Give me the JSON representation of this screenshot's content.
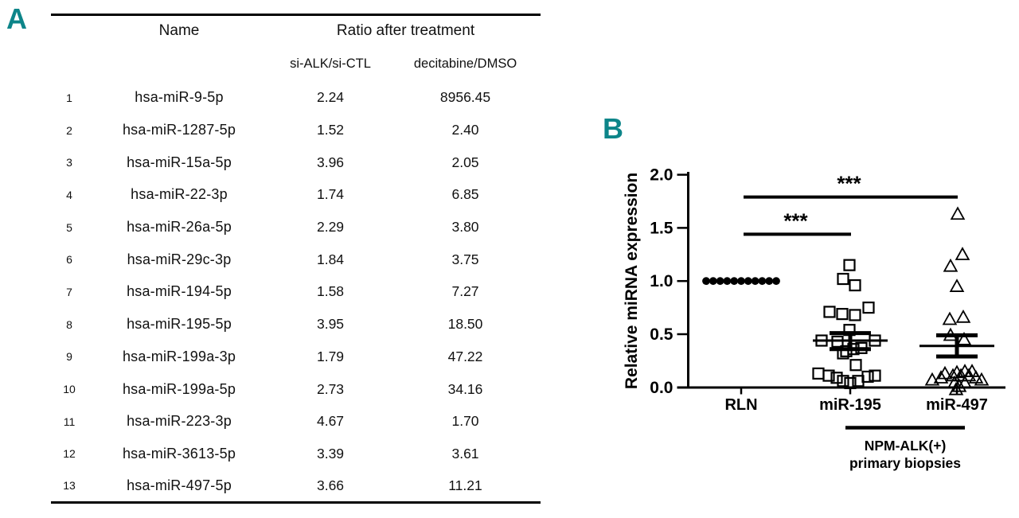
{
  "colors": {
    "panel_label_teal": "#0d8589",
    "ink": "#000000"
  },
  "panelA": {
    "label": "A",
    "table": {
      "name_header": "Name",
      "ratio_header": "Ratio after treatment",
      "subheaders": {
        "si_alk": "si-ALK/si-CTL",
        "decitabine": "decitabine/DMSO"
      },
      "rows": [
        {
          "num": "1",
          "name": "hsa-miR-9-5p",
          "si_alk": "2.24",
          "decitabine": "8956.45"
        },
        {
          "num": "2",
          "name": "hsa-miR-1287-5p",
          "si_alk": "1.52",
          "decitabine": "2.40"
        },
        {
          "num": "3",
          "name": "hsa-miR-15a-5p",
          "si_alk": "3.96",
          "decitabine": "2.05"
        },
        {
          "num": "4",
          "name": "hsa-miR-22-3p",
          "si_alk": "1.74",
          "decitabine": "6.85"
        },
        {
          "num": "5",
          "name": "hsa-miR-26a-5p",
          "si_alk": "2.29",
          "decitabine": "3.80"
        },
        {
          "num": "6",
          "name": "hsa-miR-29c-3p",
          "si_alk": "1.84",
          "decitabine": "3.75"
        },
        {
          "num": "7",
          "name": "hsa-miR-194-5p",
          "si_alk": "1.58",
          "decitabine": "7.27"
        },
        {
          "num": "8",
          "name": "hsa-miR-195-5p",
          "si_alk": "3.95",
          "decitabine": "18.50"
        },
        {
          "num": "9",
          "name": "hsa-miR-199a-3p",
          "si_alk": "1.79",
          "decitabine": "47.22"
        },
        {
          "num": "10",
          "name": "hsa-miR-199a-5p",
          "si_alk": "2.73",
          "decitabine": "34.16"
        },
        {
          "num": "11",
          "name": "hsa-miR-223-3p",
          "si_alk": "4.67",
          "decitabine": "1.70"
        },
        {
          "num": "12",
          "name": "hsa-miR-3613-5p",
          "si_alk": "3.39",
          "decitabine": "3.61"
        },
        {
          "num": "13",
          "name": "hsa-miR-497-5p",
          "si_alk": "3.66",
          "decitabine": "11.21"
        }
      ]
    }
  },
  "panelB": {
    "label": "B"
  },
  "chart_data": {
    "type": "scatter",
    "title": "",
    "xlabel": "",
    "ylabel": "Relative miRNA expression",
    "ylim": [
      0.0,
      2.0
    ],
    "yticks": [
      {
        "value": 0.0,
        "label": "0.0"
      },
      {
        "value": 0.5,
        "label": "0.5"
      },
      {
        "value": 1.0,
        "label": "1.0"
      },
      {
        "value": 1.5,
        "label": "1.5"
      },
      {
        "value": 2.0,
        "label": "2.0"
      }
    ],
    "grid": false,
    "legend": "none",
    "categories": [
      "RLN",
      "miR-195",
      "miR-497"
    ],
    "series": [
      {
        "name": "RLN",
        "marker": "circle",
        "filled": true,
        "points": [
          [
            -44,
            1.0
          ],
          [
            -35.2,
            1.0
          ],
          [
            -26.4,
            1.0
          ],
          [
            -17.6,
            1.0
          ],
          [
            -8.8,
            1.0
          ],
          [
            0,
            1.0
          ],
          [
            8.8,
            1.0
          ],
          [
            17.6,
            1.0
          ],
          [
            26.4,
            1.0
          ],
          [
            35.2,
            1.0
          ],
          [
            44,
            1.0
          ]
        ]
      },
      {
        "name": "miR-195",
        "marker": "square",
        "filled": false,
        "mean": 0.44,
        "sem_low": 0.36,
        "sem_high": 0.51,
        "points": [
          [
            -1,
            1.15
          ],
          [
            -9,
            1.02
          ],
          [
            6,
            0.96
          ],
          [
            -26,
            0.71
          ],
          [
            -10,
            0.69
          ],
          [
            6,
            0.68
          ],
          [
            23,
            0.75
          ],
          [
            -1,
            0.54
          ],
          [
            -36,
            0.44
          ],
          [
            -16,
            0.43
          ],
          [
            31,
            0.44
          ],
          [
            14,
            0.37
          ],
          [
            -5,
            0.34
          ],
          [
            -9,
            0.32
          ],
          [
            4,
            0.36
          ],
          [
            7,
            0.21
          ],
          [
            -40,
            0.13
          ],
          [
            -27,
            0.11
          ],
          [
            -17,
            0.09
          ],
          [
            -9,
            0.06
          ],
          [
            0,
            0.04
          ],
          [
            10,
            0.06
          ],
          [
            22,
            0.1
          ],
          [
            31,
            0.11
          ]
        ]
      },
      {
        "name": "miR-497",
        "marker": "triangle",
        "filled": false,
        "mean": 0.39,
        "sem_low": 0.29,
        "sem_high": 0.49,
        "points": [
          [
            1,
            1.63
          ],
          [
            7,
            1.25
          ],
          [
            -8,
            1.14
          ],
          [
            0,
            0.95
          ],
          [
            -9,
            0.64
          ],
          [
            8,
            0.66
          ],
          [
            -8,
            0.49
          ],
          [
            9,
            0.45
          ],
          [
            -31,
            0.07
          ],
          [
            -20,
            0.09
          ],
          [
            -15,
            0.13
          ],
          [
            -5,
            0.11
          ],
          [
            0,
            0.14
          ],
          [
            5,
            0.11
          ],
          [
            10,
            0.15
          ],
          [
            15,
            0.11
          ],
          [
            19,
            0.15
          ],
          [
            24,
            0.09
          ],
          [
            31,
            0.07
          ],
          [
            -3,
            0.04
          ],
          [
            3,
            0.01
          ],
          [
            10,
            0.04
          ],
          [
            -1,
            -0.02
          ]
        ]
      }
    ],
    "significance": [
      {
        "from": "RLN",
        "to": "miR-195",
        "label": "***",
        "bar_y": 1.44
      },
      {
        "from": "RLN",
        "to": "miR-497",
        "label": "***",
        "bar_y": 1.79
      }
    ],
    "group_bracket": {
      "from": "miR-195",
      "to": "miR-497",
      "label_line1": "NPM-ALK(+)",
      "label_line2": "primary biopsies"
    }
  }
}
